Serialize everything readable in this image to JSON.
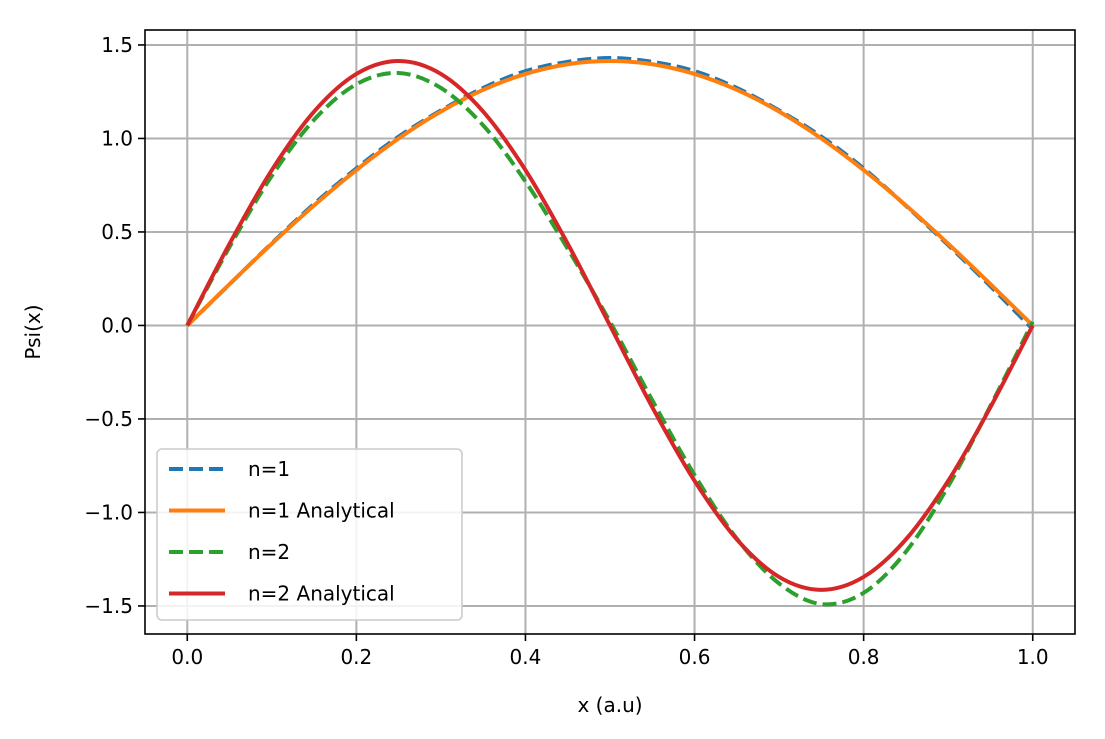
{
  "chart_data": {
    "type": "line",
    "xlabel": "x (a.u)",
    "ylabel": "Psi(x)",
    "xlim": [
      -0.05,
      1.05
    ],
    "ylim": [
      -1.65,
      1.58
    ],
    "xticks": [
      0.0,
      0.2,
      0.4,
      0.6,
      0.8,
      1.0
    ],
    "xtick_labels": [
      "0.0",
      "0.2",
      "0.4",
      "0.6",
      "0.8",
      "1.0"
    ],
    "yticks": [
      -1.5,
      -1.0,
      -0.5,
      0.0,
      0.5,
      1.0,
      1.5
    ],
    "ytick_labels": [
      "−1.5",
      "−1.0",
      "−0.5",
      "0.0",
      "0.5",
      "1.0",
      "1.5"
    ],
    "grid": true,
    "legend_position": "lower-left",
    "x": [
      0.0,
      0.05,
      0.1,
      0.15,
      0.2,
      0.25,
      0.3,
      0.35,
      0.4,
      0.45,
      0.5,
      0.55,
      0.6,
      0.65,
      0.7,
      0.75,
      0.8,
      0.85,
      0.9,
      0.95,
      1.0
    ],
    "series": [
      {
        "name": "n=1",
        "color": "#1f77b4",
        "style": "dashed",
        "values": [
          0.0,
          0.22,
          0.44,
          0.65,
          0.84,
          1.01,
          1.15,
          1.27,
          1.36,
          1.41,
          1.43,
          1.41,
          1.36,
          1.27,
          1.15,
          1.01,
          0.84,
          0.64,
          0.43,
          0.21,
          -0.02
        ]
      },
      {
        "name": "n=1 Analytical",
        "color": "#ff7f0e",
        "style": "solid",
        "values": [
          0.0,
          0.221,
          0.437,
          0.642,
          0.831,
          1.0,
          1.144,
          1.26,
          1.345,
          1.397,
          1.414,
          1.397,
          1.345,
          1.26,
          1.144,
          1.0,
          0.831,
          0.642,
          0.437,
          0.221,
          0.0
        ]
      },
      {
        "name": "n=2",
        "color": "#2ca02c",
        "style": "dashed",
        "values": [
          0.0,
          0.42,
          0.8,
          1.1,
          1.29,
          1.35,
          1.27,
          1.07,
          0.77,
          0.41,
          0.02,
          -0.4,
          -0.8,
          -1.14,
          -1.38,
          -1.49,
          -1.43,
          -1.21,
          -0.86,
          -0.43,
          0.02
        ]
      },
      {
        "name": "n=2 Analytical",
        "color": "#d62728",
        "style": "solid",
        "values": [
          0.0,
          0.437,
          0.831,
          1.144,
          1.345,
          1.414,
          1.345,
          1.144,
          0.831,
          0.437,
          0.0,
          -0.437,
          -0.831,
          -1.144,
          -1.345,
          -1.414,
          -1.345,
          -1.144,
          -0.831,
          -0.437,
          0.0
        ]
      }
    ]
  }
}
